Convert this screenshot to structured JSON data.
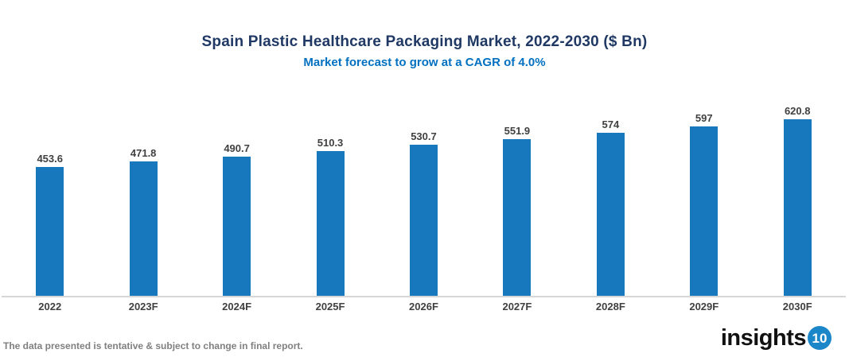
{
  "chart": {
    "title": "Spain Plastic Healthcare Packaging Market, 2022-2030 ($ Bn)",
    "subtitle": "Market forecast to grow at a CAGR of 4.0%"
  },
  "chart_data": {
    "type": "bar",
    "title": "Spain Plastic Healthcare Packaging Market, 2022-2030 ($ Bn)",
    "subtitle": "Market forecast to grow at a CAGR of 4.0%",
    "categories": [
      "2022",
      "2023F",
      "2024F",
      "2025F",
      "2026F",
      "2027F",
      "2028F",
      "2029F",
      "2030F"
    ],
    "values": [
      453.6,
      471.8,
      490.7,
      510.3,
      530.7,
      551.9,
      574,
      597,
      620.8
    ],
    "value_labels": [
      "453.6",
      "471.8",
      "490.7",
      "510.3",
      "530.7",
      "551.9",
      "574",
      "597",
      "620.8"
    ],
    "xlabel": "",
    "ylabel": "",
    "ylim": [
      0,
      660
    ],
    "grid": false,
    "legend": false,
    "bar_color": "#1878be"
  },
  "footer": {
    "disclaimer": "The data presented is tentative & subject to change in final report.",
    "logo_text": "insights",
    "logo_number": "10"
  },
  "colors": {
    "title": "#1f3864",
    "subtitle": "#0070c0",
    "bar": "#1878be",
    "axis_line": "#d6d6d6",
    "data_label": "#404040",
    "footer_text": "#808080",
    "logo_circle": "#1b87c9"
  }
}
